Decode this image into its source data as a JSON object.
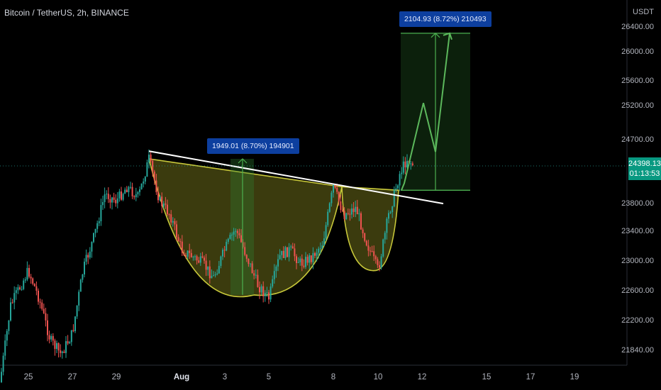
{
  "header": {
    "title": "Bitcoin / TetherUS, 2h, BINANCE"
  },
  "price_axis": {
    "currency": "USDT",
    "labels": [
      "26400.00",
      "26000.00",
      "25600.00",
      "25200.00",
      "24700.00",
      "23800.00",
      "23400.00",
      "23000.00",
      "22600.00",
      "22200.00",
      "21840.00"
    ]
  },
  "current_price": {
    "price": "24398.13",
    "countdown": "01:13:53"
  },
  "measurements": [
    {
      "text": "1949.01 (8.70%) 194901"
    },
    {
      "text": "2104.93 (8.72%) 210493"
    }
  ],
  "time_axis": {
    "labels": [
      "25",
      "27",
      "29",
      "Aug",
      "3",
      "5",
      "8",
      "10",
      "12",
      "15",
      "17",
      "19"
    ]
  },
  "colors": {
    "background": "#000000",
    "up_candle": "#26a69a",
    "down_candle": "#ef5350",
    "trendline": "#ffffff",
    "cup_fill": "#6b6b1a",
    "measure_green": "#4caf50",
    "badge_blue": "#0d3f9f",
    "price_badge": "#089981"
  },
  "chart_data": {
    "type": "candlestick",
    "title": "Bitcoin / TetherUS, 2h, BINANCE",
    "symbol": "BTCUSDT",
    "timeframe": "2h",
    "exchange": "BINANCE",
    "y_axis_unit": "USDT",
    "x_ticks": [
      "25",
      "27",
      "29",
      "Aug",
      "3",
      "5",
      "8",
      "10",
      "12",
      "15",
      "17",
      "19"
    ],
    "y_ticks": [
      21840,
      22200,
      22600,
      23000,
      23400,
      23800,
      24700,
      25200,
      25600,
      26000,
      26400
    ],
    "last_price": 24398.13,
    "anchors": [
      [
        "24",
        21300
      ],
      [
        "24",
        22400
      ],
      [
        "25",
        22900
      ],
      [
        "25",
        22500
      ],
      [
        "26",
        21900
      ],
      [
        "26",
        21700
      ],
      [
        "27",
        22000
      ],
      [
        "27",
        22900
      ],
      [
        "28",
        23400
      ],
      [
        "28",
        24000
      ],
      [
        "29",
        23900
      ],
      [
        "29",
        24100
      ],
      [
        "30",
        23950
      ],
      [
        "30",
        24500
      ],
      [
        "31",
        23900
      ],
      [
        "31",
        23700
      ],
      [
        "Aug 1",
        23200
      ],
      [
        "Aug 2",
        23000
      ],
      [
        "Aug 2",
        22800
      ],
      [
        "Aug 3",
        23200
      ],
      [
        "Aug 3",
        23500
      ],
      [
        "Aug 4",
        23100
      ],
      [
        "Aug 4",
        22700
      ],
      [
        "Aug 5",
        22500
      ],
      [
        "Aug 5",
        23100
      ],
      [
        "Aug 6",
        23200
      ],
      [
        "Aug 6",
        23000
      ],
      [
        "Aug 7",
        23100
      ],
      [
        "Aug 7",
        23300
      ],
      [
        "Aug 8",
        24100
      ],
      [
        "Aug 8",
        23700
      ],
      [
        "Aug 9",
        23800
      ],
      [
        "Aug 9",
        23300
      ],
      [
        "Aug 10",
        22900
      ],
      [
        "Aug 10",
        23700
      ],
      [
        "Aug 11",
        24300
      ],
      [
        "Aug 11",
        24500
      ],
      [
        "Aug 11",
        24398
      ]
    ],
    "annotations": {
      "trendline": {
        "start": [
          "Jul 29",
          24600
        ],
        "end": [
          "Aug 12",
          23950
        ]
      },
      "cup": {
        "left_rim": [
          "Jul 29",
          24500
        ],
        "bottom": [
          "Aug 4",
          22550
        ],
        "right_rim": [
          "Aug 8",
          24100
        ]
      },
      "handle": {
        "left_rim": [
          "Aug 8",
          24100
        ],
        "bottom": [
          "Aug 10",
          22900
        ],
        "right_rim": [
          "Aug 11",
          24050
        ]
      },
      "measure_cup": {
        "from": 22550,
        "to": 24500,
        "label": "1949.01 (8.70%) 194901"
      },
      "target": {
        "from": 24050,
        "to": 26300,
        "label": "2104.93 (8.72%) 210493"
      },
      "projected_path": [
        [
          "Aug 11",
          24050
        ],
        [
          "Aug 11",
          24150
        ],
        [
          "Aug 12",
          25300
        ],
        [
          "Aug 13",
          24600
        ],
        [
          "Aug 13",
          26300
        ]
      ]
    }
  }
}
